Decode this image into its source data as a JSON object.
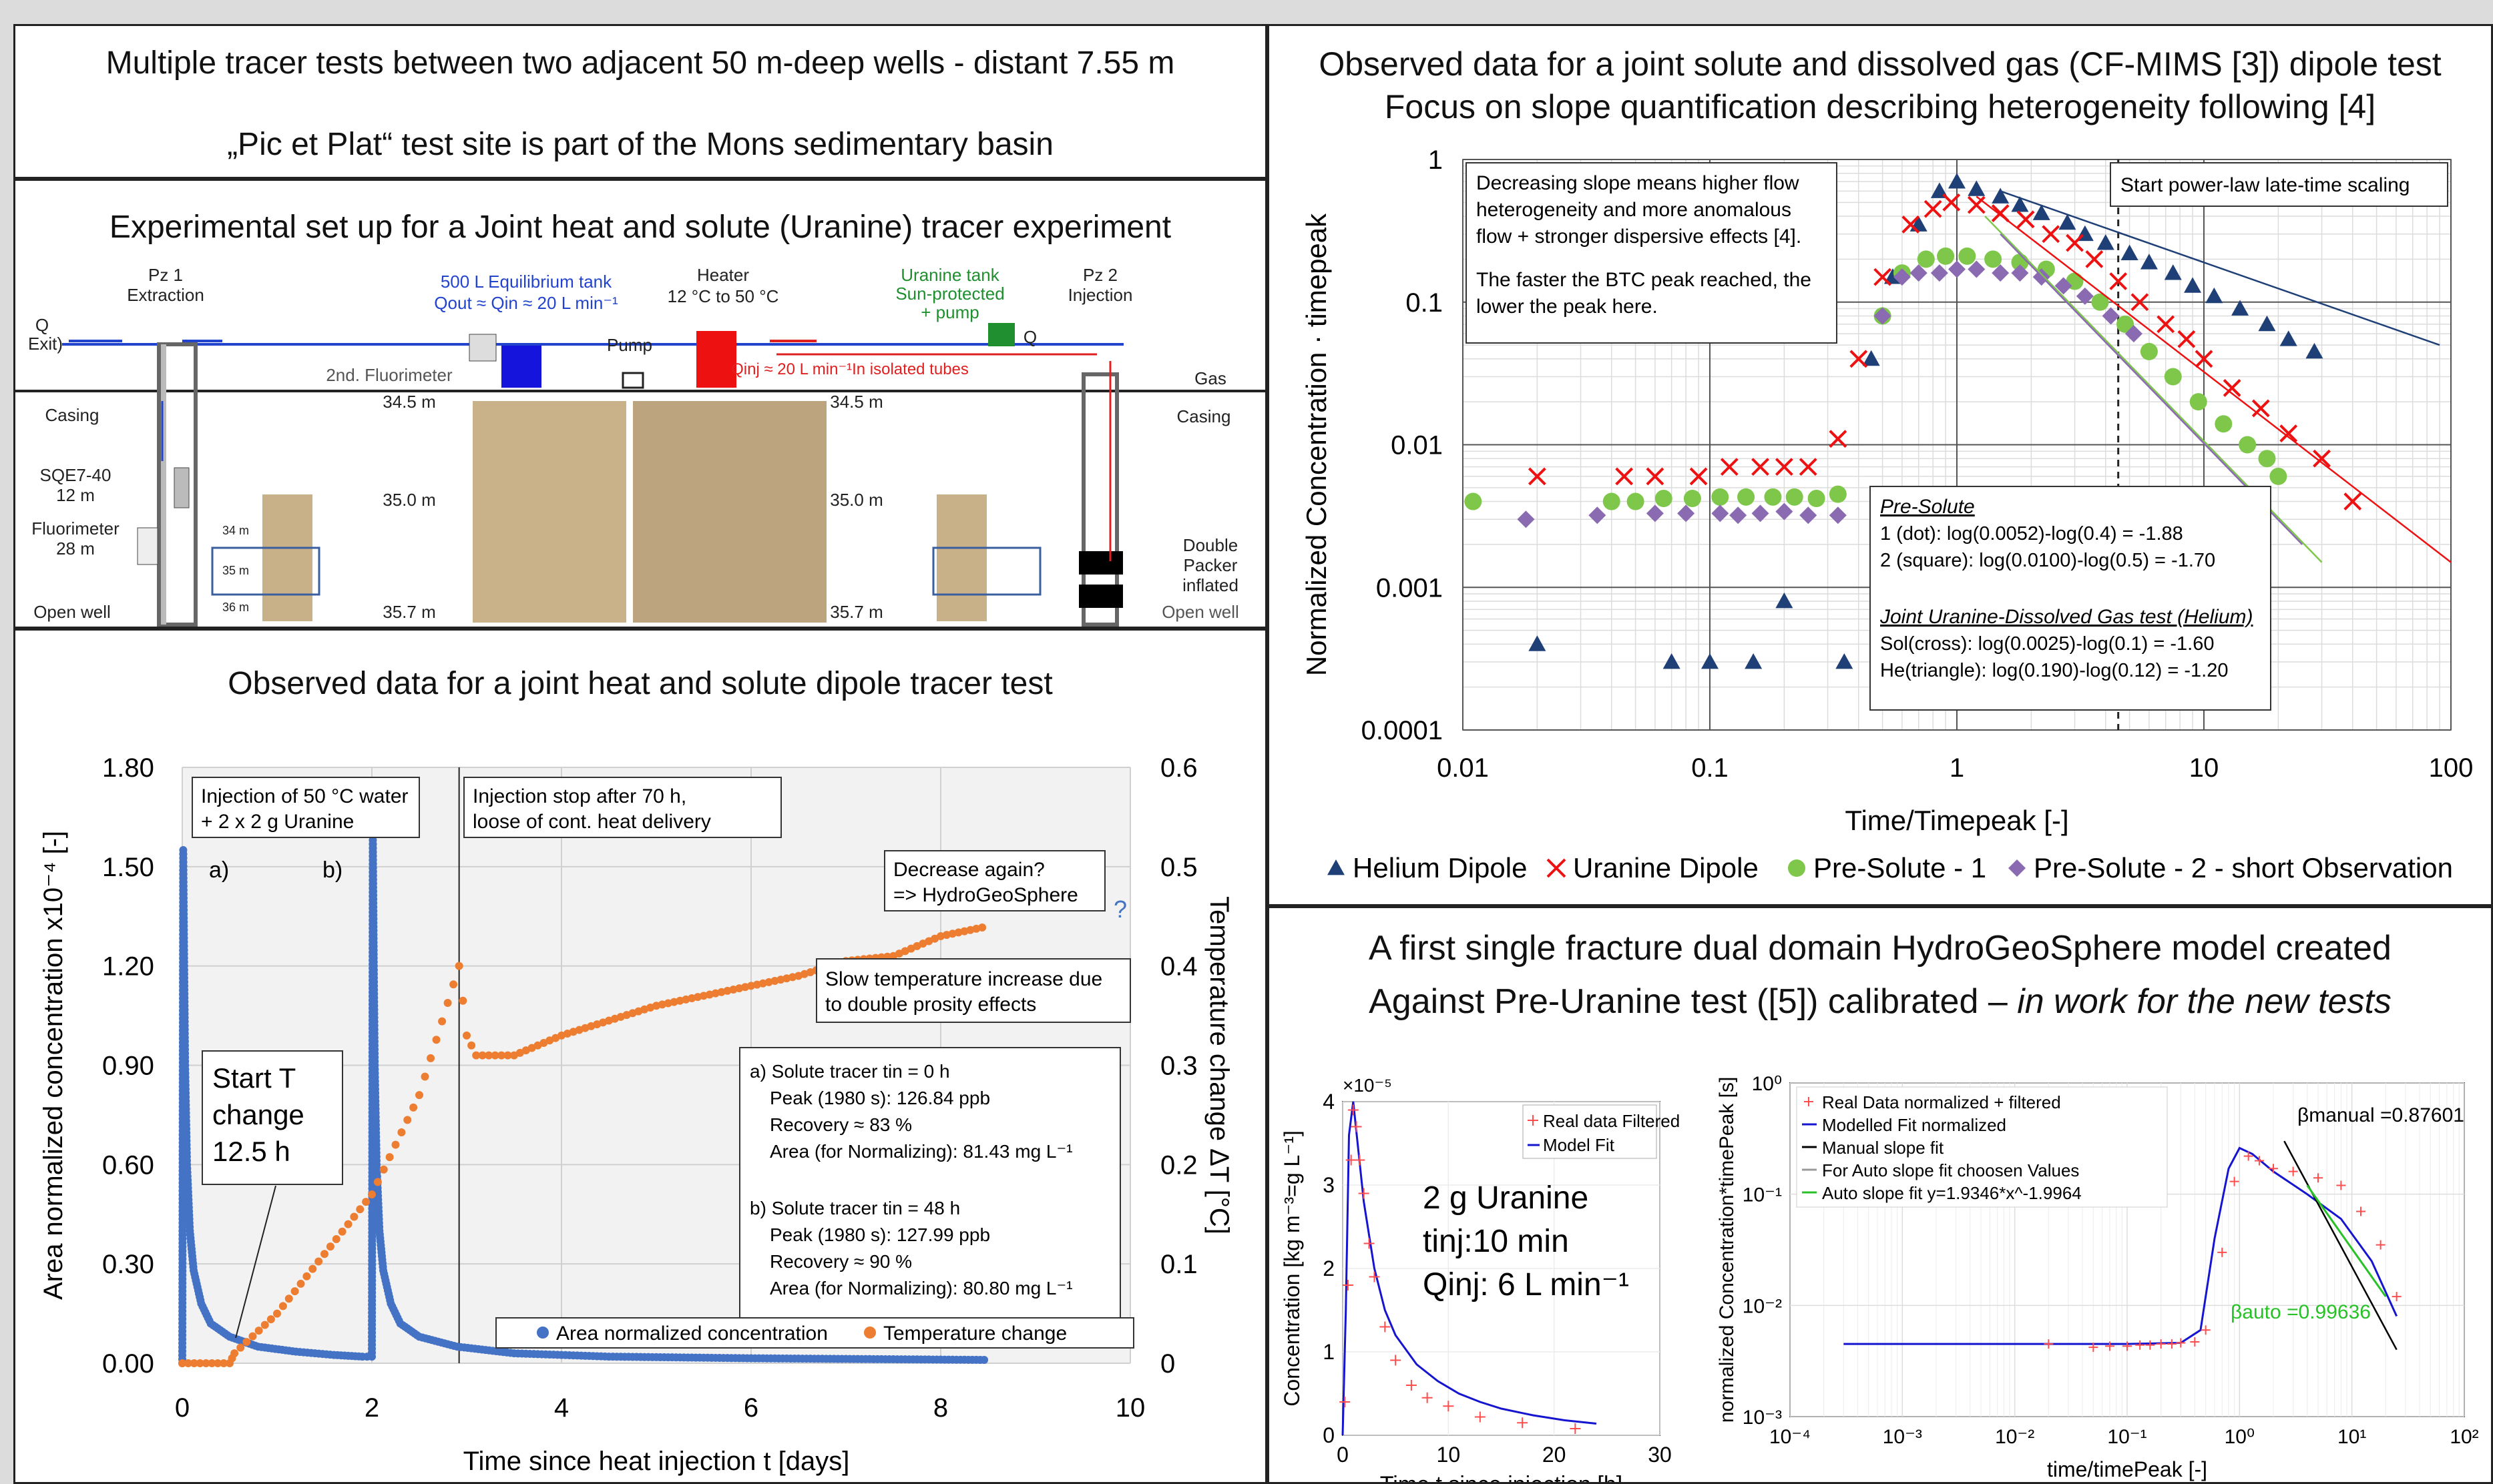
{
  "p1": {
    "line1": "Multiple tracer tests between two adjacent  50 m-deep wells - distant 7.55 m",
    "line2": "„Pic et Plat“ test site is part of the Mons sedimentary basin"
  },
  "p2": {
    "title": "Experimental set up for a Joint heat and solute (Uranine) tracer experiment",
    "labels": {
      "pz1": "Pz 1",
      "extraction": "Extraction",
      "q_exit": "Q",
      "exit": "Exit)",
      "casing_l": "Casing",
      "sqe": "SQE7-40",
      "sqe_depth": "12 m",
      "fluorimeter": "Fluorimeter",
      "fluor_depth": "28 m",
      "open_well_l": "Open well",
      "tank": "500 L Equilibrium tank",
      "tank_q": "Qout ≈ Qin ≈ 20 L min⁻¹",
      "second_fluor": "2nd. Fluorimeter",
      "pump": "Pump",
      "heater": "Heater",
      "heater_range": "12 °C to 50 °C",
      "uranine1": "Uranine tank",
      "uranine2": "Sun-protected",
      "uranine3": "+ pump",
      "q_small": "Q",
      "qinj": "Qinj ≈ 20 L min⁻¹In isolated tubes",
      "pz2": "Pz 2",
      "injection": "Injection",
      "gas": "Gas",
      "casing_r": "Casing",
      "d1": "34.5 m",
      "d2": "35.0 m",
      "d3": "35.7 m",
      "d1r": "34.5 m",
      "d2r": "35.0 m",
      "d3r": "35.7 m",
      "s34": "34 m",
      "s35": "35 m",
      "s36": "36 m",
      "packer1": "Double",
      "packer2": "Packer",
      "packer3": "inflated",
      "open_well_r": "Open well"
    }
  },
  "p3": {
    "title": "Observed data for a joint heat and solute dipole tracer test",
    "notes": {
      "inj1": "Injection of 50 °C water",
      "inj2": "+ 2 x 2 g Uranine",
      "stop1": "Injection stop after 70 h,",
      "stop2": "loose of cont. heat delivery",
      "dec1": "Decrease again?",
      "dec2": "=> HydroGeoSphere",
      "q": "?",
      "slow1": "Slow temperature increase due",
      "slow2": "to double prosity effects",
      "a": "a)",
      "b": "b)",
      "st1": "Start T",
      "st2": "change",
      "st3": "12.5 h",
      "ra1": "a) Solute tracer tin = 0 h",
      "ra2": "Peak (1980 s): 126.84 ppb",
      "ra3": "Recovery ≈ 83 %",
      "ra4": "Area (for Normalizing): 81.43 mg L⁻¹",
      "rb1": "b) Solute tracer tin = 48 h",
      "rb2": "Peak (1980 s): 127.99 ppb",
      "rb3": "Recovery ≈ 90 %",
      "rb4": "Area (for Normalizing): 80.80 mg L⁻¹"
    }
  },
  "p4": {
    "title1": "Observed data for a joint solute and dissolved gas (CF-MIMS [3]) dipole test",
    "title2": "Focus on slope quantification describing heterogeneity following [4]",
    "note1": "Decreasing slope means higher flow",
    "note2": "heterogeneity and more anomalous",
    "note3": "flow + stronger dispersive effects [4].",
    "note4": "The faster the BTC peak reached, the",
    "note5": "lower the peak here.",
    "start": "Start power-law late-time scaling",
    "s_title": "Pre-Solute",
    "s1": "1 (dot):         log(0.0052)-log(0.4) = -1.88",
    "s2": "2 (square):    log(0.0100)-log(0.5) = -1.70",
    "s_title2": "Joint Uranine-Dissolved Gas test (Helium)",
    "s3": "Sol(cross):    log(0.0025)-log(0.1)  = -1.60",
    "s4": "He(triangle): log(0.190)-log(0.12)  = -1.20"
  },
  "p5": {
    "title1": "A first single fracture dual domain HydroGeoSphere model created",
    "title2a": "Against Pre-Uranine test ([5]) calibrated – ",
    "title2b": "in work for the new tests",
    "ann1": "2 g Uranine",
    "ann2": "tinj:10 min",
    "ann3": "Qinj: 6 L min⁻¹",
    "exp": "×10⁻⁵",
    "beta_manual": "βmanual =0.87601",
    "beta_auto": "βauto =0.99636"
  },
  "chart_data": [
    {
      "type": "scatter",
      "id": "heat_solute",
      "xlabel": "Time since heat injection t [days]",
      "ylabel": "Area normalized concentration x10⁻⁴ [-]",
      "y2label": "Temperature change ΔT [°C]",
      "xlim": [
        0,
        10
      ],
      "ylim": [
        0,
        1.8
      ],
      "y2lim": [
        0,
        0.6
      ],
      "xticks": [
        "0",
        "2",
        "4",
        "6",
        "8",
        "10"
      ],
      "yticks": [
        "0.00",
        "0.30",
        "0.60",
        "0.90",
        "1.20",
        "1.50",
        "1.80"
      ],
      "y2ticks": [
        "0",
        "0.1",
        "0.2",
        "0.3",
        "0.4",
        "0.5",
        "0.6"
      ],
      "legend": [
        "Area normalized concentration",
        "Temperature change"
      ],
      "colors": [
        "#4472c4",
        "#ed7d31"
      ],
      "series": [
        {
          "name": "Area normalized concentration",
          "axis": "left",
          "x": [
            0,
            0.01,
            0.02,
            0.03,
            0.05,
            0.08,
            0.12,
            0.2,
            0.3,
            0.5,
            0.8,
            1.2,
            1.6,
            1.9,
            2.0,
            2.01,
            2.02,
            2.03,
            2.05,
            2.08,
            2.12,
            2.2,
            2.3,
            2.5,
            2.9,
            3.5,
            4.5,
            6,
            7.5,
            8.5
          ],
          "y": [
            0,
            1.55,
            1.2,
            0.9,
            0.6,
            0.4,
            0.28,
            0.18,
            0.12,
            0.08,
            0.05,
            0.035,
            0.025,
            0.02,
            0.02,
            1.58,
            1.2,
            0.9,
            0.6,
            0.4,
            0.28,
            0.18,
            0.12,
            0.08,
            0.05,
            0.03,
            0.02,
            0.015,
            0.012,
            0.01
          ]
        },
        {
          "name": "Temperature change",
          "axis": "right",
          "x": [
            0,
            0.5,
            0.55,
            1.0,
            1.5,
            2.0,
            2.5,
            2.92,
            3.0,
            3.1,
            3.3,
            3.5,
            4.0,
            4.5,
            5.0,
            5.5,
            6.0,
            6.5,
            7.0,
            7.5,
            8.0,
            8.5
          ],
          "y": [
            0,
            0,
            0.01,
            0.05,
            0.11,
            0.17,
            0.27,
            0.4,
            0.33,
            0.31,
            0.31,
            0.31,
            0.33,
            0.345,
            0.36,
            0.37,
            0.38,
            0.39,
            0.405,
            0.41,
            0.43,
            0.44
          ]
        }
      ]
    },
    {
      "type": "scatter",
      "id": "dipole_loglog",
      "xlabel": "Time/Timepeak [-]",
      "ylabel": "Normalized Concentration · timepeak",
      "xscale": "log",
      "yscale": "log",
      "xlim": [
        0.01,
        100
      ],
      "ylim": [
        0.0001,
        1
      ],
      "xticks": [
        "0.01",
        "0.1",
        "1",
        "10",
        "100"
      ],
      "yticks": [
        "0.0001",
        "0.001",
        "0.01",
        "0.1",
        "1"
      ],
      "legend_position": "bottom",
      "colors": [
        "#1f3f77",
        "#ee1111",
        "#7ec74a",
        "#8a6ab0"
      ],
      "series": [
        {
          "name": "Helium Dipole",
          "marker": "triangle",
          "x": [
            0.02,
            0.07,
            0.1,
            0.15,
            0.2,
            0.35,
            0.45,
            0.55,
            0.7,
            0.85,
            1.0,
            1.2,
            1.5,
            1.8,
            2.2,
            2.8,
            3.3,
            4.0,
            5.0,
            6.0,
            7.5,
            9.0,
            11,
            14,
            18,
            22,
            28
          ],
          "y": [
            0.0004,
            0.0003,
            0.0003,
            0.0003,
            0.0008,
            0.0003,
            0.04,
            0.15,
            0.35,
            0.6,
            0.7,
            0.62,
            0.55,
            0.48,
            0.42,
            0.36,
            0.3,
            0.26,
            0.22,
            0.19,
            0.16,
            0.13,
            0.11,
            0.09,
            0.07,
            0.055,
            0.045
          ]
        },
        {
          "name": "Uranine Dipole",
          "marker": "cross",
          "x": [
            0.02,
            0.045,
            0.06,
            0.09,
            0.12,
            0.16,
            0.2,
            0.25,
            0.33,
            0.4,
            0.5,
            0.65,
            0.8,
            0.95,
            1.2,
            1.5,
            1.9,
            2.4,
            3,
            3.6,
            4.5,
            5.5,
            7,
            8.5,
            10,
            13,
            17,
            22,
            30,
            40
          ],
          "y": [
            0.006,
            0.006,
            0.006,
            0.006,
            0.007,
            0.007,
            0.007,
            0.007,
            0.011,
            0.04,
            0.15,
            0.35,
            0.45,
            0.5,
            0.48,
            0.42,
            0.38,
            0.3,
            0.26,
            0.2,
            0.14,
            0.1,
            0.07,
            0.055,
            0.04,
            0.025,
            0.018,
            0.012,
            0.008,
            0.004
          ]
        },
        {
          "name": "Pre-Solute - 1",
          "marker": "dot",
          "x": [
            0.011,
            0.04,
            0.05,
            0.065,
            0.085,
            0.11,
            0.14,
            0.18,
            0.22,
            0.27,
            0.33,
            0.5,
            0.6,
            0.75,
            0.9,
            1.1,
            1.4,
            1.8,
            2.3,
            3,
            3.8,
            4.8,
            6,
            7.5,
            9.5,
            12,
            15,
            18,
            20
          ],
          "y": [
            0.004,
            0.004,
            0.004,
            0.0042,
            0.0042,
            0.0043,
            0.0043,
            0.0043,
            0.0043,
            0.0042,
            0.0045,
            0.08,
            0.16,
            0.2,
            0.21,
            0.21,
            0.2,
            0.19,
            0.17,
            0.14,
            0.1,
            0.07,
            0.045,
            0.03,
            0.02,
            0.014,
            0.01,
            0.008,
            0.006
          ]
        },
        {
          "name": "Pre-Solute - 2 - short Observation",
          "marker": "diamond",
          "x": [
            0.018,
            0.035,
            0.06,
            0.08,
            0.11,
            0.13,
            0.16,
            0.2,
            0.25,
            0.33,
            0.5,
            0.6,
            0.7,
            0.85,
            1.0,
            1.2,
            1.5,
            1.8,
            2.2,
            2.7,
            3.3,
            4.2,
            5.2
          ],
          "y": [
            0.003,
            0.0032,
            0.0033,
            0.0033,
            0.0033,
            0.0032,
            0.0033,
            0.0034,
            0.0032,
            0.0032,
            0.08,
            0.15,
            0.16,
            0.16,
            0.17,
            0.17,
            0.16,
            0.16,
            0.15,
            0.13,
            0.11,
            0.08,
            0.06
          ]
        }
      ]
    },
    {
      "type": "line",
      "id": "hgs_linear",
      "xlabel": "Time t since injection [h]",
      "ylabel": "Concentration [kg m⁻³=g L⁻¹]",
      "xlim": [
        0,
        30
      ],
      "ylim": [
        0,
        4
      ],
      "xticks": [
        "0",
        "10",
        "20",
        "30"
      ],
      "yticks": [
        "0",
        "1",
        "2",
        "3",
        "4"
      ],
      "legend": [
        "Real data Filtered",
        "Model Fit"
      ],
      "colors": [
        "#ff4d4d",
        "#1515d0"
      ],
      "series": [
        {
          "name": "Real data Filtered",
          "x": [
            0.2,
            0.5,
            0.8,
            1,
            1.3,
            1.6,
            2,
            2.5,
            3,
            4,
            5,
            6.5,
            8,
            10,
            13,
            17,
            22
          ],
          "y": [
            0.4,
            1.8,
            3.3,
            3.9,
            3.7,
            3.3,
            2.9,
            2.3,
            1.9,
            1.3,
            0.9,
            0.6,
            0.45,
            0.35,
            0.22,
            0.15,
            0.08
          ]
        },
        {
          "name": "Model Fit",
          "x": [
            0,
            0.3,
            0.6,
            1,
            1.5,
            2,
            3,
            4,
            5,
            7,
            9,
            11,
            13,
            15,
            18,
            21,
            24
          ],
          "y": [
            0,
            1.5,
            3.6,
            4.0,
            3.4,
            2.8,
            2.0,
            1.5,
            1.2,
            0.85,
            0.65,
            0.5,
            0.4,
            0.32,
            0.24,
            0.18,
            0.14
          ]
        }
      ]
    },
    {
      "type": "line",
      "id": "hgs_loglog",
      "xlabel": "time/timePeak [-]",
      "ylabel": "normalized Concentration*timePeak [s]",
      "xscale": "log",
      "yscale": "log",
      "xlim": [
        0.0001,
        100
      ],
      "ylim": [
        0.001,
        1
      ],
      "xticks": [
        "10⁻⁴",
        "10⁻³",
        "10⁻²",
        "10⁻¹",
        "10⁰",
        "10¹",
        "10²"
      ],
      "yticks": [
        "10⁻³",
        "10⁻²",
        "10⁻¹",
        "10⁰"
      ],
      "legend": [
        "Real Data normalized + filtered",
        "Modelled Fit normalized",
        "Manual slope fit",
        "For Auto slope fit choosen Values",
        "Auto slope fit y=1.9346*x^-1.9964"
      ],
      "colors": [
        "#ff4d4d",
        "#1515d0",
        "#000000",
        "#999999",
        "#27c227"
      ],
      "series": [
        {
          "name": "Real Data normalized + filtered",
          "x": [
            0.02,
            0.05,
            0.07,
            0.1,
            0.13,
            0.16,
            0.2,
            0.25,
            0.3,
            0.4,
            0.5,
            0.7,
            0.9,
            1.2,
            1.5,
            2,
            3,
            5,
            8,
            12,
            18,
            25
          ],
          "y": [
            0.0045,
            0.0042,
            0.0043,
            0.0043,
            0.0044,
            0.0044,
            0.0045,
            0.0045,
            0.0046,
            0.0047,
            0.006,
            0.03,
            0.13,
            0.22,
            0.2,
            0.17,
            0.16,
            0.14,
            0.12,
            0.07,
            0.035,
            0.012
          ]
        },
        {
          "name": "Modelled Fit normalized",
          "x": [
            0.0003,
            0.001,
            0.01,
            0.1,
            0.3,
            0.45,
            0.6,
            0.8,
            1.0,
            1.3,
            2,
            4,
            8,
            15,
            25
          ],
          "y": [
            0.0045,
            0.0045,
            0.0045,
            0.0045,
            0.0046,
            0.006,
            0.04,
            0.17,
            0.26,
            0.23,
            0.16,
            0.1,
            0.06,
            0.025,
            0.008
          ]
        }
      ]
    }
  ]
}
